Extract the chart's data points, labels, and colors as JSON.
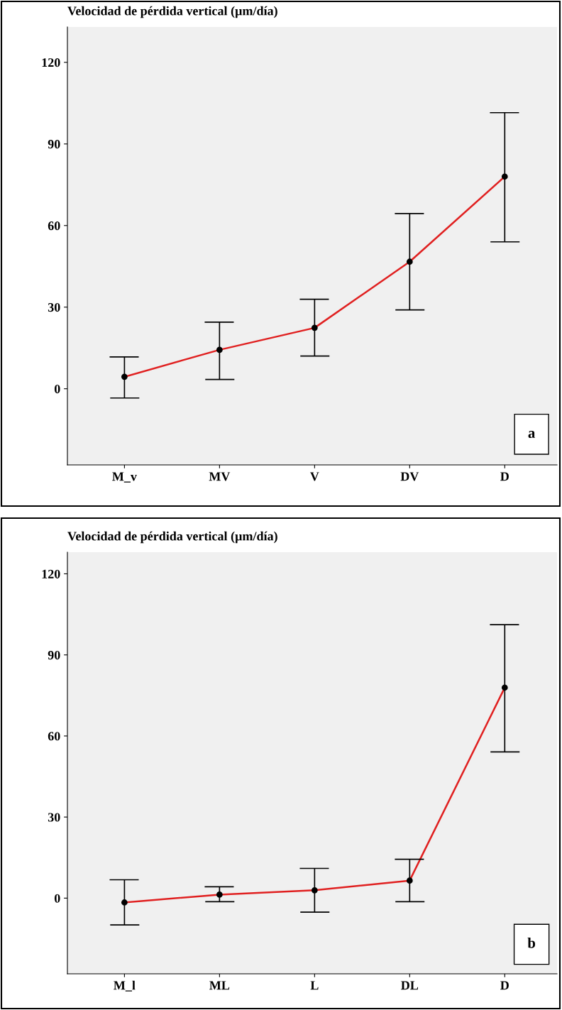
{
  "chart_data": [
    {
      "type": "line",
      "title": "Velocidad de pérdida vertical (µm/día)",
      "categories": [
        "M_v",
        "MV",
        "V",
        "DV",
        "D"
      ],
      "values": [
        4.4,
        14.3,
        22.4,
        46.7,
        78
      ],
      "errors": [
        [
          -3.4,
          11.7
        ],
        [
          3.4,
          24.5
        ],
        [
          12,
          32.9
        ],
        [
          29,
          64.4
        ],
        [
          54,
          101.5
        ]
      ],
      "color": "#e02020",
      "marker": "circle",
      "ylim": [
        -28,
        133
      ],
      "yticks": [
        0,
        30,
        60,
        90,
        120
      ],
      "grid": false,
      "annotations": [
        "a"
      ]
    },
    {
      "type": "line",
      "title": "Velocidad de pérdida vertical (µm/día)",
      "categories": [
        "M_l",
        "ML",
        "L",
        "DL",
        "D"
      ],
      "values": [
        -1.6,
        1.3,
        2.9,
        6.5,
        77.9
      ],
      "errors": [
        [
          -9.9,
          6.8
        ],
        [
          -1.3,
          4.2
        ],
        [
          -5.2,
          11
        ],
        [
          -1.3,
          14.4
        ],
        [
          54.1,
          101.2
        ]
      ],
      "color": "#e02020",
      "marker": "circle",
      "ylim": [
        -28,
        128
      ],
      "yticks": [
        0,
        30,
        60,
        90,
        120
      ],
      "grid": false,
      "annotations": [
        "b"
      ]
    }
  ]
}
